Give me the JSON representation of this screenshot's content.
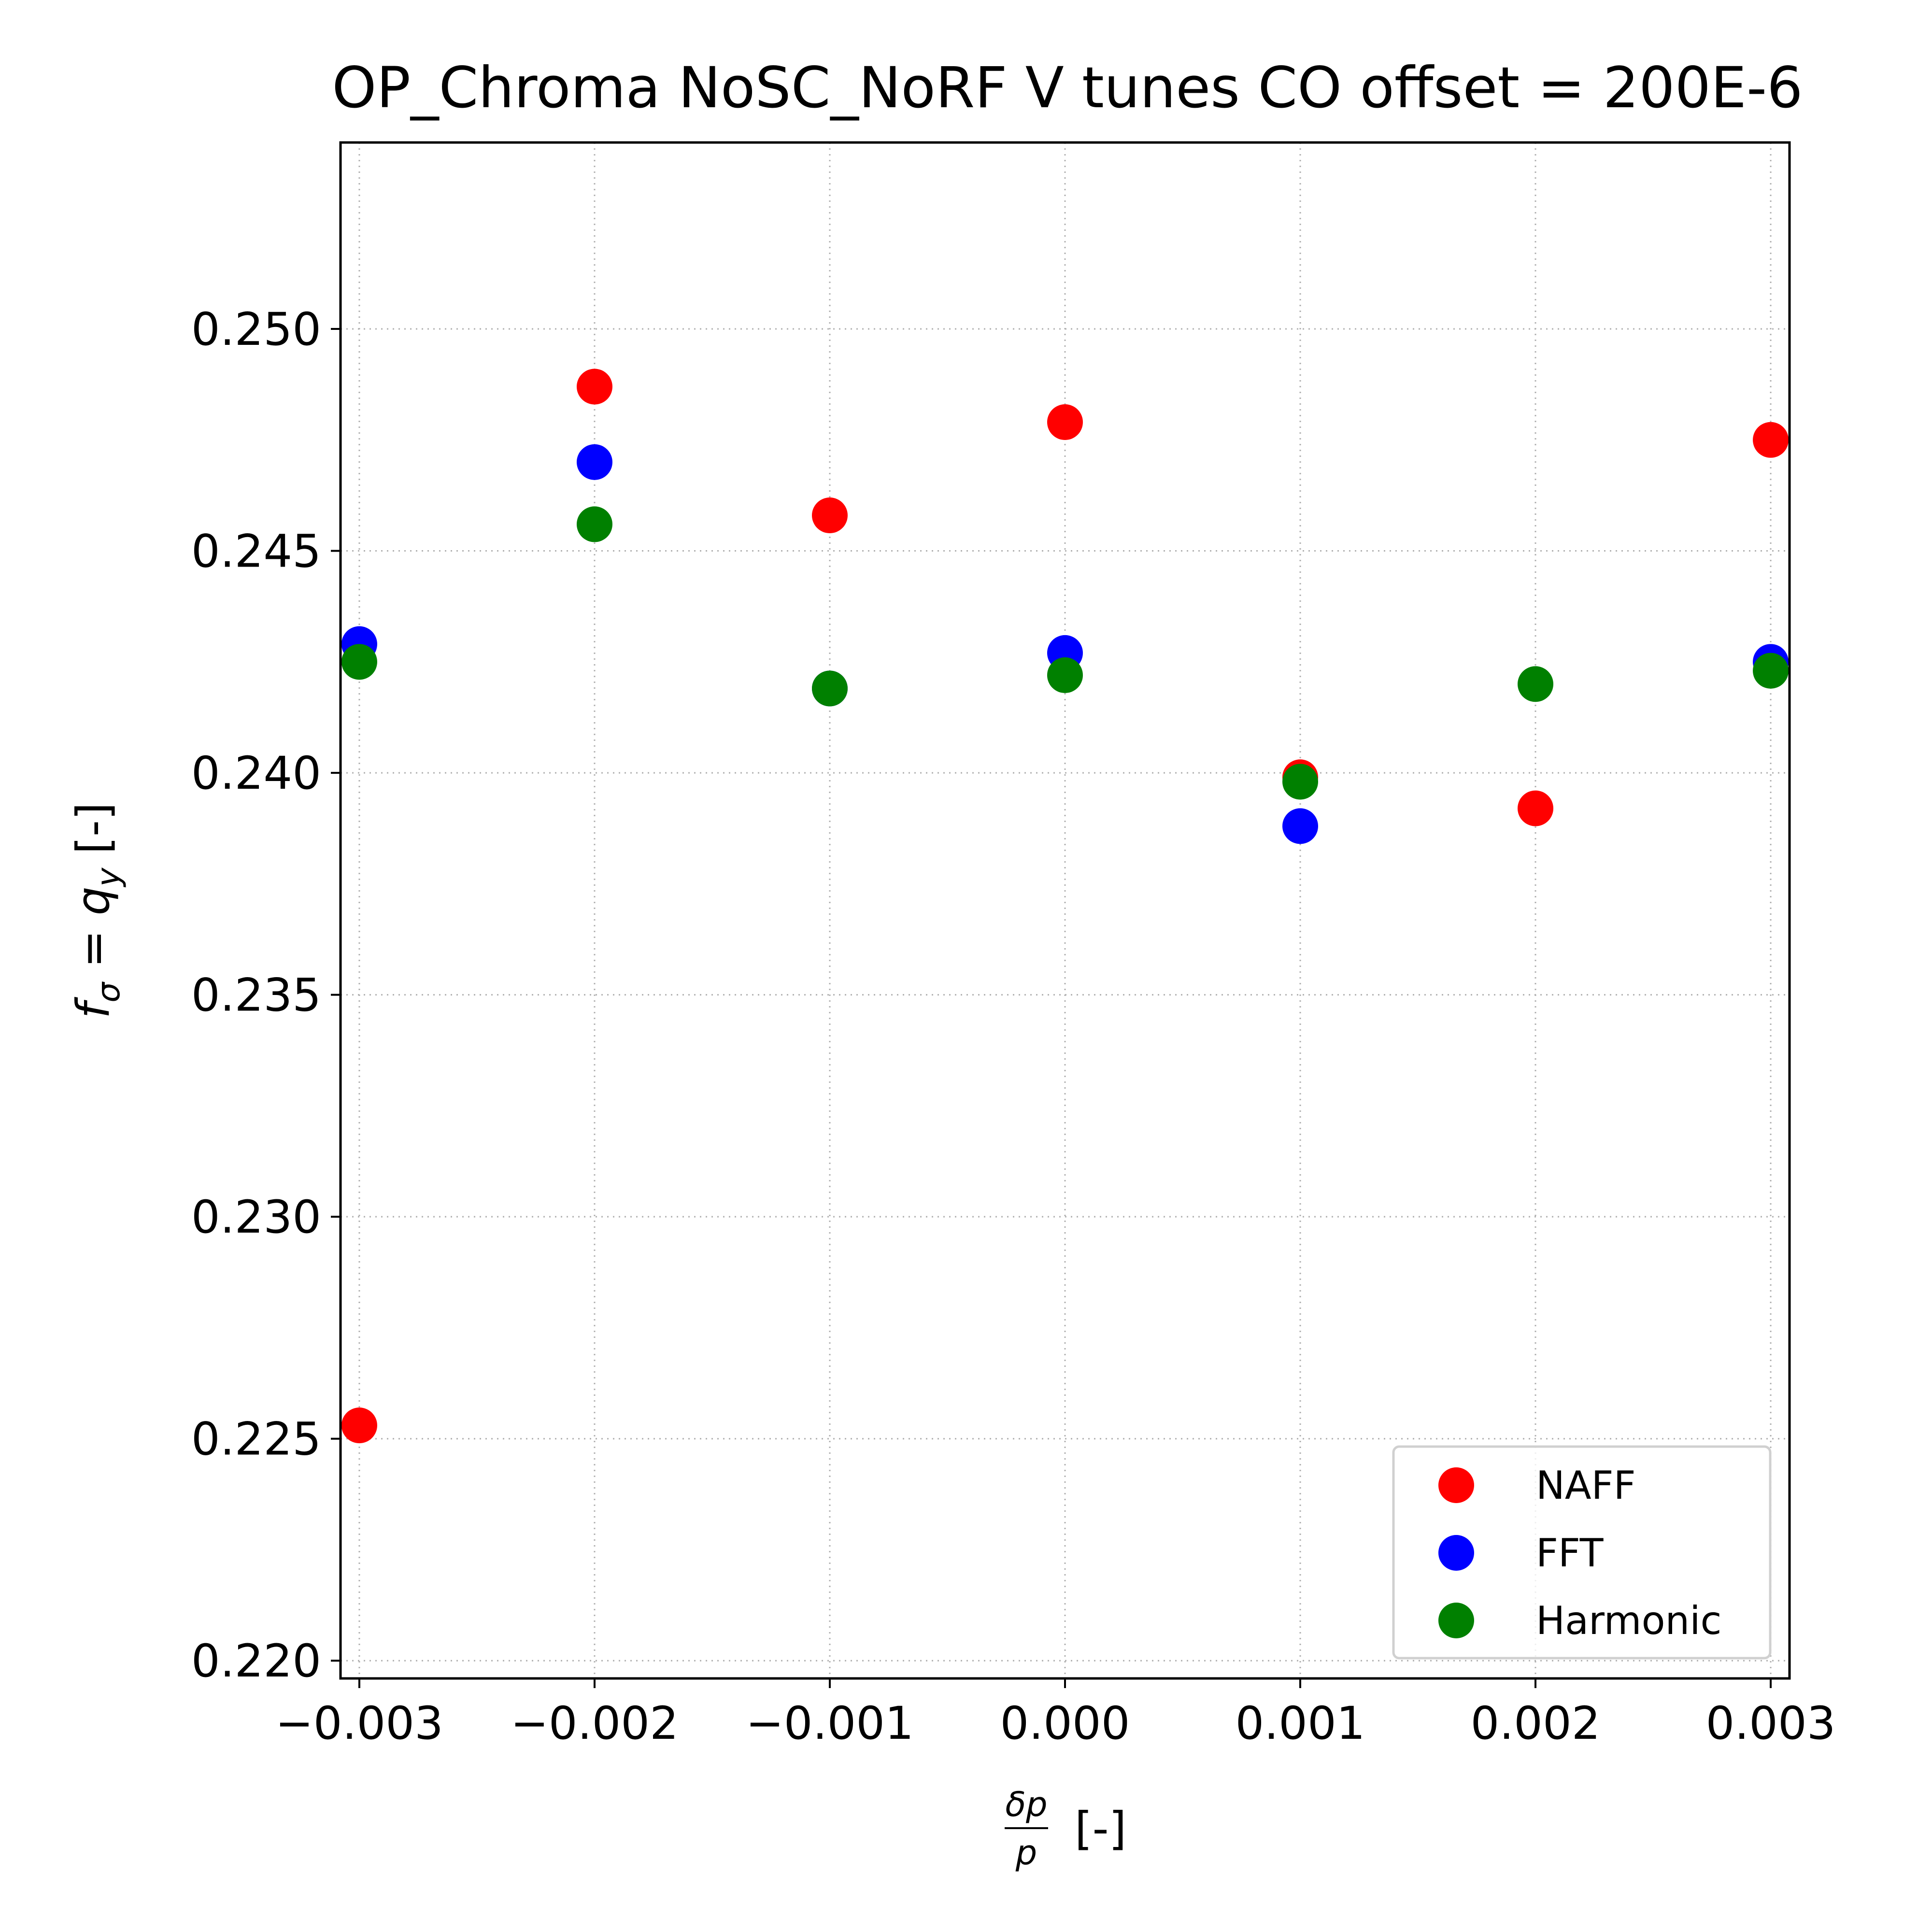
{
  "chart_data": {
    "type": "scatter",
    "title": "OP_Chroma NoSC_NoRF V tunes CO offset = 200E-6",
    "xlabel_num": "δp",
    "xlabel_den": "p",
    "xlabel_suffix": "[-]",
    "ylabel_main": "f",
    "ylabel_sub1": "σ",
    "ylabel_eq": " = ",
    "ylabel_q": "q",
    "ylabel_sub2": "y",
    "ylabel_suffix": "[-]",
    "xlim": [
      -0.00308,
      0.00308
    ],
    "ylim": [
      0.2196,
      0.2542
    ],
    "xticks": [
      -0.003,
      -0.002,
      -0.001,
      0.0,
      0.001,
      0.002,
      0.003
    ],
    "xtick_labels": [
      "−0.003",
      "−0.002",
      "−0.001",
      "0.000",
      "0.001",
      "0.002",
      "0.003"
    ],
    "yticks": [
      0.22,
      0.225,
      0.23,
      0.235,
      0.24,
      0.245,
      0.25
    ],
    "ytick_labels": [
      "0.220",
      "0.225",
      "0.230",
      "0.235",
      "0.240",
      "0.245",
      "0.250"
    ],
    "grid": true,
    "legend_position": "lower-right",
    "series": [
      {
        "name": "NAFF",
        "color": "#ff0000",
        "x": [
          -0.003,
          -0.002,
          -0.001,
          0.0,
          0.001,
          0.002,
          0.003
        ],
        "y": [
          0.2253,
          0.2487,
          0.2458,
          0.2479,
          0.2399,
          0.2392,
          0.2475
        ]
      },
      {
        "name": "FFT",
        "color": "#0000ff",
        "x": [
          -0.003,
          -0.002,
          -0.001,
          0.0,
          0.001,
          0.003
        ],
        "y": [
          0.2429,
          0.247,
          0.2419,
          0.2427,
          0.2388,
          0.2425
        ]
      },
      {
        "name": "Harmonic",
        "color": "#008000",
        "x": [
          -0.003,
          -0.002,
          -0.001,
          0.0,
          0.001,
          0.002,
          0.003
        ],
        "y": [
          0.2425,
          0.2456,
          0.2419,
          0.2422,
          0.2398,
          0.242,
          0.2423
        ]
      }
    ]
  }
}
